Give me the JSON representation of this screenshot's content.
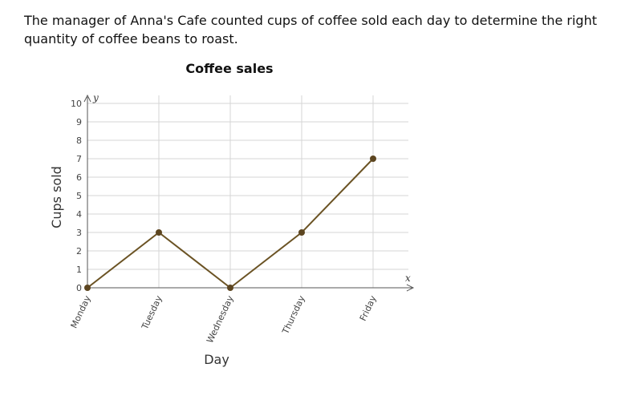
{
  "question": {
    "text": "The manager of Anna's Cafe counted cups of coffee sold each day to determine the right quantity of coffee beans to roast."
  },
  "chart_data": {
    "type": "line",
    "title": "Coffee sales",
    "xlabel": "Day",
    "ylabel": "Cups sold",
    "x_axis_letter": "x",
    "y_axis_letter": "y",
    "categories": [
      "Monday",
      "Tuesday",
      "Wednesday",
      "Thursday",
      "Friday"
    ],
    "values": [
      0,
      3,
      0,
      3,
      7
    ],
    "ylim": [
      0,
      10
    ],
    "yticks": [
      0,
      1,
      2,
      3,
      4,
      5,
      6,
      7,
      8,
      9,
      10
    ],
    "grid": true,
    "colors": {
      "line": "#6b5324",
      "marker": "#5c4520"
    }
  }
}
